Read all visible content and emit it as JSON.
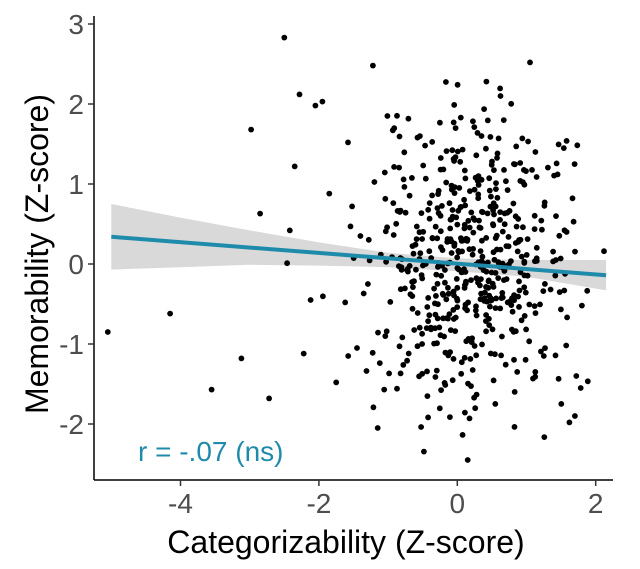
{
  "chart_data": {
    "type": "scatter",
    "title": "",
    "xlabel": "Categorizability (Z-score)",
    "ylabel": "Memorability (Z-score)",
    "xlim": [
      -5.25,
      2.25
    ],
    "ylim": [
      -2.7,
      3.1
    ],
    "x_ticks": [
      {
        "value": -4,
        "label": "-4"
      },
      {
        "value": -2,
        "label": "-2"
      },
      {
        "value": 0,
        "label": "0"
      },
      {
        "value": 2,
        "label": "2"
      }
    ],
    "y_ticks": [
      {
        "value": -2,
        "label": "-2"
      },
      {
        "value": -1,
        "label": "-1"
      },
      {
        "value": 0,
        "label": "0"
      },
      {
        "value": 1,
        "label": "1"
      },
      {
        "value": 2,
        "label": "2"
      },
      {
        "value": 3,
        "label": "3"
      }
    ],
    "grid": false,
    "point_color": "#000000",
    "fit_line": {
      "x": [
        -5.0,
        2.15
      ],
      "y": [
        0.34,
        -0.14
      ],
      "color": "#1f8bab"
    },
    "confidence_band": {
      "color": "#d9d9d9",
      "x": [
        -5.0,
        -4.0,
        -3.0,
        -2.0,
        -1.0,
        0.0,
        1.0,
        2.15
      ],
      "upper": [
        0.75,
        0.58,
        0.42,
        0.27,
        0.14,
        0.07,
        0.05,
        0.05
      ],
      "lower": [
        -0.07,
        -0.04,
        -0.01,
        -0.02,
        -0.04,
        -0.09,
        -0.16,
        -0.33
      ]
    },
    "annotation": {
      "text": "r = -.07 (ns)",
      "color": "#1f8bab"
    },
    "outlier_points": [
      {
        "x": -5.05,
        "y": -0.85
      },
      {
        "x": -4.15,
        "y": -0.62
      },
      {
        "x": -3.55,
        "y": -1.57
      },
      {
        "x": -3.12,
        "y": -1.18
      },
      {
        "x": -2.98,
        "y": 1.68
      },
      {
        "x": -2.85,
        "y": 0.63
      },
      {
        "x": -2.72,
        "y": -1.68
      },
      {
        "x": -2.5,
        "y": 2.83
      },
      {
        "x": -2.46,
        "y": 0.01
      },
      {
        "x": -2.42,
        "y": 0.42
      },
      {
        "x": -2.35,
        "y": 1.22
      },
      {
        "x": -2.28,
        "y": 2.12
      },
      {
        "x": -2.22,
        "y": -1.12
      },
      {
        "x": -2.12,
        "y": -0.45
      },
      {
        "x": -2.05,
        "y": 1.98
      },
      {
        "x": -1.95,
        "y": 2.03
      },
      {
        "x": -1.85,
        "y": 0.88
      },
      {
        "x": -1.75,
        "y": -1.48
      },
      {
        "x": -1.62,
        "y": -0.48
      },
      {
        "x": -1.58,
        "y": 1.52
      },
      {
        "x": -1.52,
        "y": 0.72
      },
      {
        "x": -1.45,
        "y": -1.05
      },
      {
        "x": -1.4,
        "y": 0.35
      },
      {
        "x": -1.22,
        "y": 2.48
      },
      {
        "x": -1.15,
        "y": -2.05
      },
      {
        "x": 0.15,
        "y": -2.45
      },
      {
        "x": 0.42,
        "y": 2.28
      },
      {
        "x": 1.05,
        "y": 2.52
      },
      {
        "x": 1.25,
        "y": -1.15
      },
      {
        "x": 1.45,
        "y": 1.12
      },
      {
        "x": 1.58,
        "y": 0.4
      },
      {
        "x": 1.72,
        "y": -1.4
      },
      {
        "x": 1.62,
        "y": -1.98
      },
      {
        "x": 1.7,
        "y": -1.9
      },
      {
        "x": 2.12,
        "y": 0.16
      },
      {
        "x": 1.8,
        "y": -0.52
      }
    ],
    "cloud": {
      "n": 540,
      "x_center": 0.22,
      "x_sd": 0.72,
      "x_range": [
        -2.25,
        1.9
      ],
      "y_center": 0.0,
      "y_sd": 0.95,
      "y_range": [
        -2.45,
        2.35
      ],
      "slope": -0.07,
      "seed": 7
    }
  }
}
